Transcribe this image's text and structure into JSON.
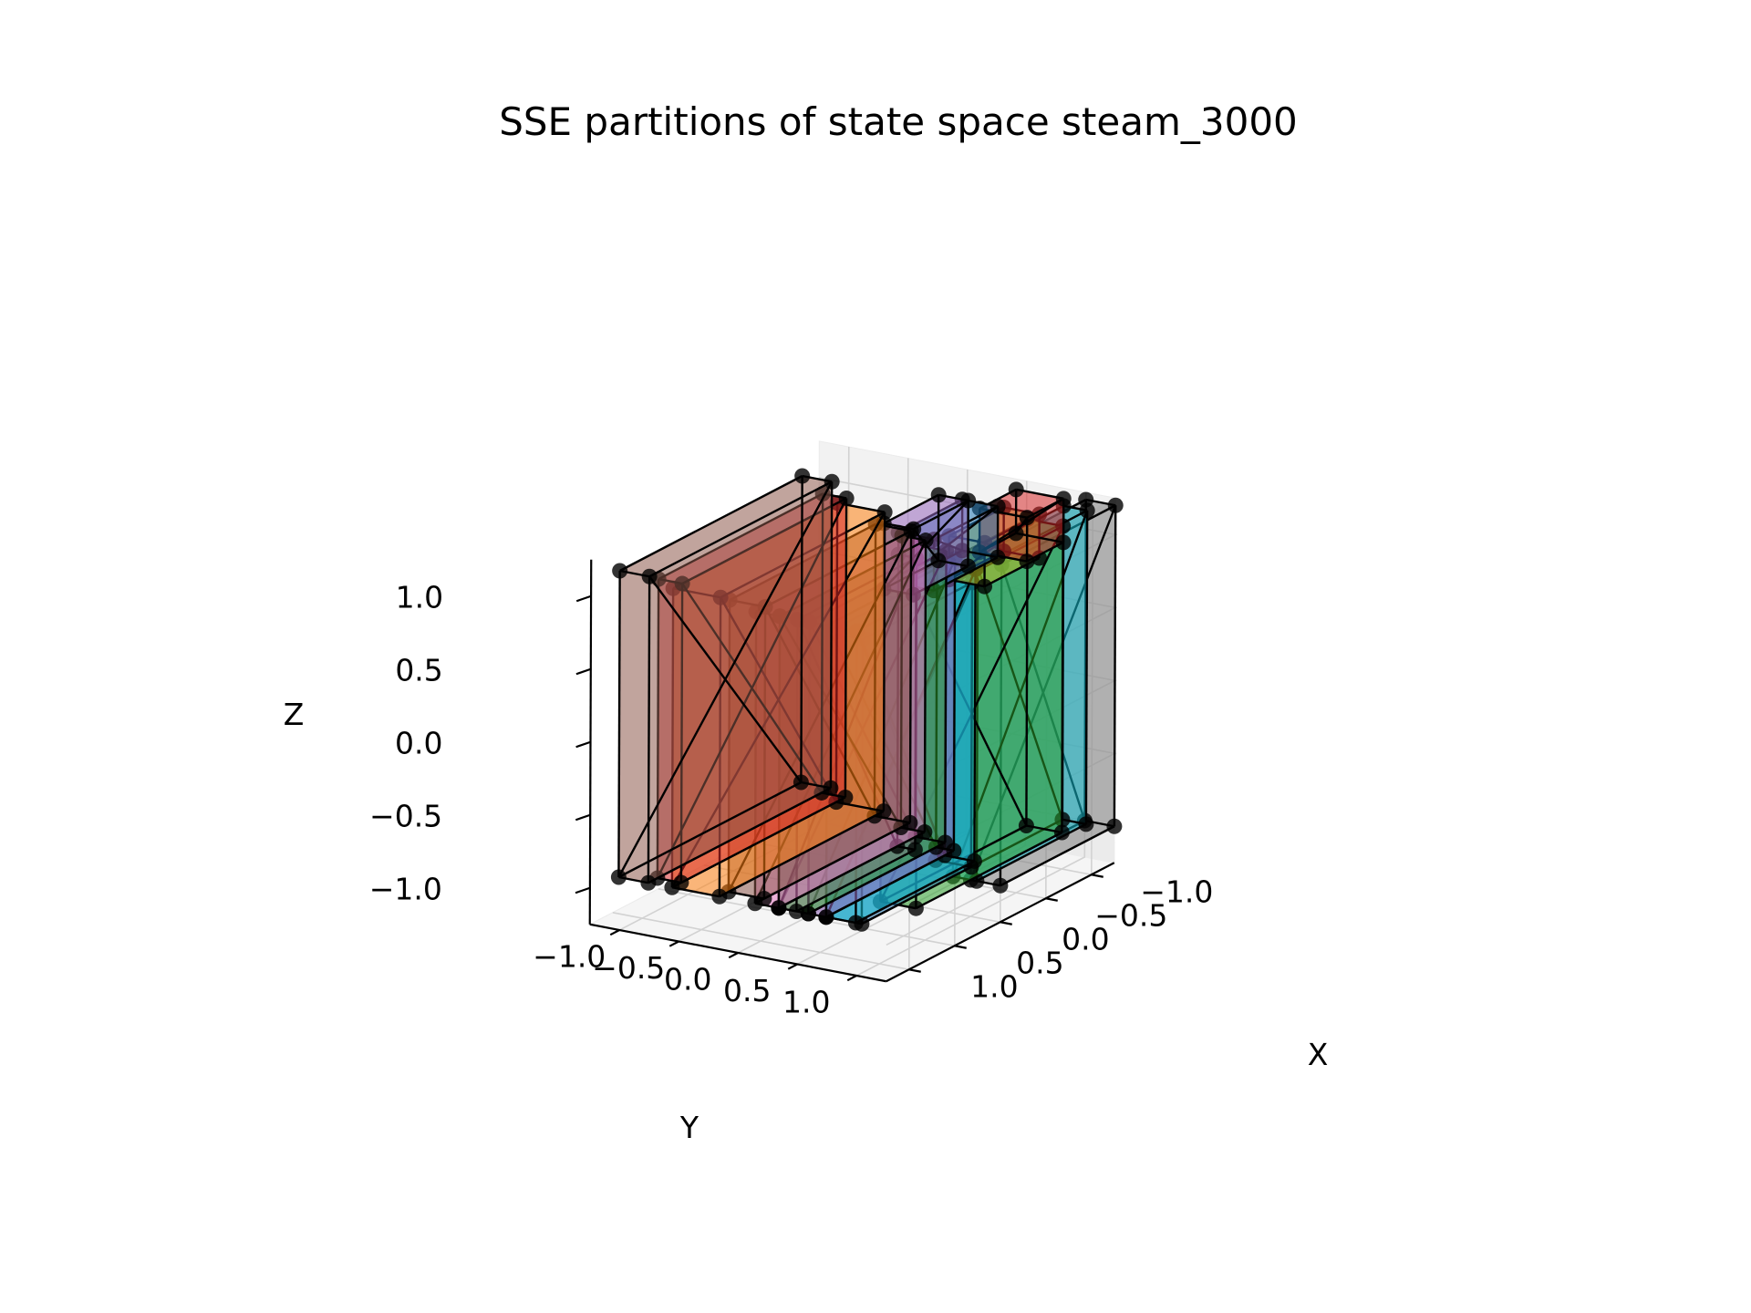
{
  "chart_data": {
    "type": "3d-polyhedra-scatter",
    "title": "SSE partitions of state space steam_3000",
    "xlabel": "X",
    "ylabel": "Y",
    "zlabel": "Z",
    "xlim": [
      -1.25,
      1.25
    ],
    "ylim": [
      -1.25,
      1.25
    ],
    "zlim": [
      -1.25,
      1.25
    ],
    "x_ticks": [
      -1.0,
      -0.5,
      0.0,
      0.5,
      1.0
    ],
    "y_ticks": [
      -1.0,
      -0.5,
      0.0,
      0.5,
      1.0
    ],
    "z_ticks": [
      -1.0,
      -0.5,
      0.0,
      0.5,
      1.0
    ],
    "x_tick_labels": [
      "−1.0",
      "−0.5",
      "0.0",
      "0.5",
      "1.0"
    ],
    "y_tick_labels": [
      "−1.0",
      "−0.5",
      "0.0",
      "0.5",
      "1.0"
    ],
    "z_tick_labels": [
      "−1.0",
      "−0.5",
      "0.0",
      "0.5",
      "1.0"
    ],
    "grid": true,
    "legend": "none",
    "view": {
      "elev": 20,
      "azim": -150
    },
    "partitions": [
      {
        "color": "#8c564b",
        "y": [
          -1.2,
          -0.95
        ],
        "x": [
          -1.0,
          1.0
        ],
        "z": [
          -1.0,
          1.1
        ]
      },
      {
        "color": "#d62728",
        "y": [
          -0.95,
          -0.75
        ],
        "x": [
          -0.9,
          0.9
        ],
        "z": [
          -1.0,
          1.05
        ]
      },
      {
        "color": "#ff7f0e",
        "y": [
          -0.75,
          -0.35
        ],
        "x": [
          -0.8,
          1.0
        ],
        "z": [
          -1.0,
          1.05
        ]
      },
      {
        "color": "#8c564b",
        "y": [
          -0.35,
          -0.05
        ],
        "x": [
          -0.7,
          0.9
        ],
        "z": [
          -1.0,
          1.0
        ]
      },
      {
        "color": "#e377c2",
        "y": [
          -0.05,
          0.15
        ],
        "x": [
          -0.6,
          1.0
        ],
        "z": [
          -1.0,
          1.0
        ]
      },
      {
        "color": "#9467bd",
        "y": [
          -0.05,
          0.2
        ],
        "x": [
          -1.0,
          -0.4
        ],
        "z": [
          0.7,
          1.15
        ]
      },
      {
        "color": "#1f77b4",
        "y": [
          0.15,
          0.45
        ],
        "x": [
          -1.0,
          -0.3
        ],
        "z": [
          0.8,
          1.15
        ]
      },
      {
        "color": "#2ca02c",
        "y": [
          0.15,
          0.4
        ],
        "x": [
          -0.5,
          1.0
        ],
        "z": [
          -1.0,
          1.0
        ]
      },
      {
        "color": "#7f7f7f",
        "y": [
          0.15,
          0.3
        ],
        "x": [
          -0.3,
          1.0
        ],
        "z": [
          -1.0,
          1.0
        ]
      },
      {
        "color": "#9467bd",
        "y": [
          0.4,
          0.55
        ],
        "x": [
          -0.4,
          1.0
        ],
        "z": [
          -1.0,
          1.0
        ]
      },
      {
        "color": "#17becf",
        "y": [
          0.55,
          0.8
        ],
        "x": [
          -0.3,
          1.0
        ],
        "z": [
          -1.0,
          1.0
        ]
      },
      {
        "color": "#1f77b4",
        "y": [
          0.55,
          0.85
        ],
        "x": [
          -0.2,
          1.0
        ],
        "z": [
          -1.0,
          0.95
        ]
      },
      {
        "color": "#bcbd22",
        "y": [
          0.5,
          0.8
        ],
        "x": [
          -1.0,
          -0.4
        ],
        "z": [
          0.85,
          1.15
        ]
      },
      {
        "color": "#d62728",
        "y": [
          0.45,
          0.85
        ],
        "x": [
          -1.2,
          -0.8
        ],
        "z": [
          0.9,
          1.2
        ]
      },
      {
        "color": "#2ca02c",
        "y": [
          0.7,
          1.0
        ],
        "x": [
          -1.0,
          0.6
        ],
        "z": [
          -1.0,
          1.1
        ]
      },
      {
        "color": "#17becf",
        "y": [
          0.85,
          1.05
        ],
        "x": [
          -1.2,
          0.0
        ],
        "z": [
          -1.0,
          1.15
        ]
      },
      {
        "color": "#7f7f7f",
        "y": [
          1.0,
          1.25
        ],
        "x": [
          -1.25,
          0.0
        ],
        "z": [
          -1.0,
          1.2
        ]
      }
    ]
  }
}
